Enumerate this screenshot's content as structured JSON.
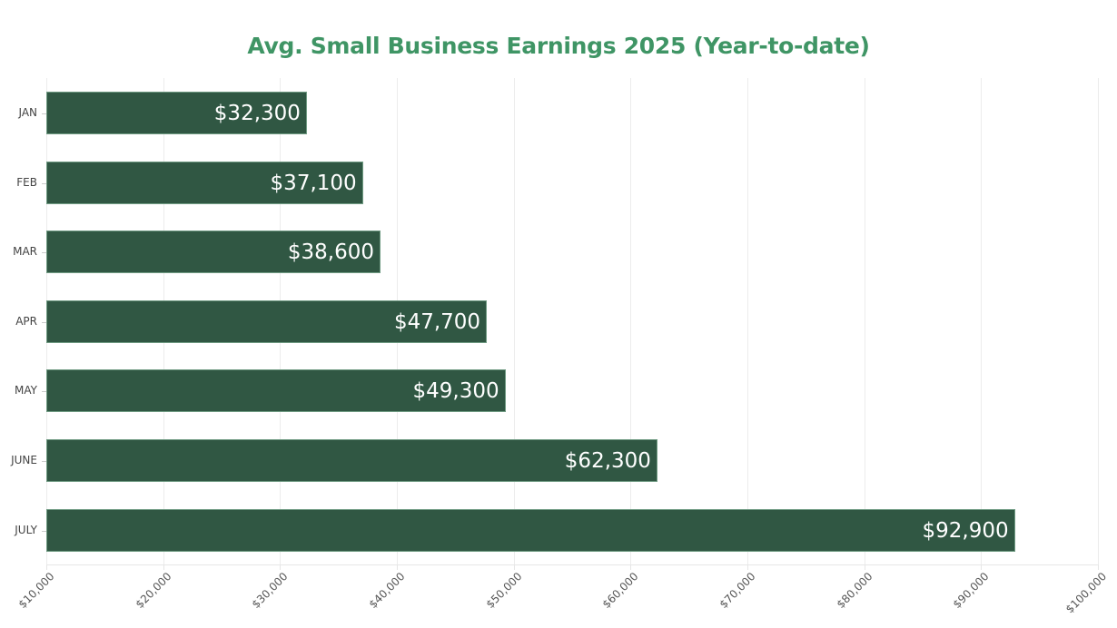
{
  "chart_data": {
    "type": "bar",
    "orientation": "horizontal",
    "title": "Avg. Small Business Earnings 2025 (Year-to-date)",
    "xlabel": "",
    "ylabel": "",
    "categories": [
      "JAN",
      "FEB",
      "MAR",
      "APR",
      "MAY",
      "JUNE",
      "JULY"
    ],
    "values": [
      32300,
      37100,
      38600,
      47700,
      49300,
      62300,
      92900
    ],
    "data_labels": [
      "$32,300",
      "$37,100",
      "$38,600",
      "$47,700",
      "$49,300",
      "$62,300",
      "$92,900"
    ],
    "xlim": [
      10000,
      100000
    ],
    "x_ticks": [
      "$10,000",
      "$20,000",
      "$30,000",
      "$40,000",
      "$50,000",
      "$60,000",
      "$70,000",
      "$80,000",
      "$90,000",
      "$100,000"
    ],
    "grid": true,
    "legend": null,
    "bar_color": "#305743",
    "title_color": "#3f9565"
  }
}
